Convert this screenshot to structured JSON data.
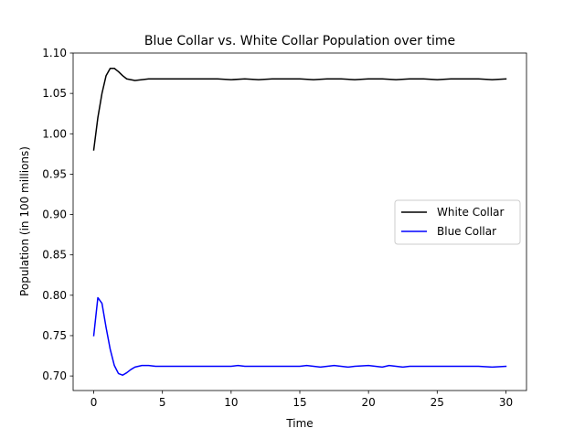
{
  "chart_data": {
    "type": "line",
    "title": "Blue Collar vs. White Collar Population over time",
    "xlabel": "Time",
    "ylabel": "Population (in 100 millions)",
    "xlim": [
      -1.5,
      31.5
    ],
    "ylim": [
      0.682,
      1.1
    ],
    "xticks": [
      0,
      5,
      10,
      15,
      20,
      25,
      30
    ],
    "xtick_labels": [
      "0",
      "5",
      "10",
      "15",
      "20",
      "25",
      "30"
    ],
    "yticks": [
      0.7,
      0.75,
      0.8,
      0.85,
      0.9,
      0.95,
      1.0,
      1.05,
      1.1
    ],
    "ytick_labels": [
      "0.70",
      "0.75",
      "0.80",
      "0.85",
      "0.90",
      "0.95",
      "1.00",
      "1.05",
      "1.10"
    ],
    "grid": false,
    "legend_position": "center-right",
    "series": [
      {
        "name": "White Collar",
        "color": "#000000",
        "x": [
          0,
          0.3,
          0.6,
          0.9,
          1.2,
          1.5,
          1.8,
          2.1,
          2.4,
          2.7,
          3.0,
          3.5,
          4.0,
          4.5,
          5,
          6,
          7,
          8,
          9,
          10,
          11,
          12,
          13,
          14,
          15,
          16,
          17,
          18,
          19,
          20,
          21,
          22,
          23,
          24,
          25,
          26,
          27,
          28,
          29,
          30
        ],
        "y": [
          0.98,
          1.02,
          1.05,
          1.072,
          1.081,
          1.081,
          1.077,
          1.072,
          1.068,
          1.067,
          1.066,
          1.067,
          1.068,
          1.068,
          1.068,
          1.068,
          1.068,
          1.068,
          1.068,
          1.067,
          1.068,
          1.067,
          1.068,
          1.068,
          1.068,
          1.067,
          1.068,
          1.068,
          1.067,
          1.068,
          1.068,
          1.067,
          1.068,
          1.068,
          1.067,
          1.068,
          1.068,
          1.068,
          1.067,
          1.068
        ]
      },
      {
        "name": "Blue Collar",
        "color": "#0000ff",
        "x": [
          0,
          0.3,
          0.6,
          0.9,
          1.2,
          1.5,
          1.8,
          2.1,
          2.4,
          2.7,
          3.0,
          3.5,
          4.0,
          4.5,
          5,
          6,
          7,
          8,
          9,
          10,
          10.5,
          11,
          12,
          13,
          14,
          15,
          15.5,
          16,
          16.5,
          17,
          17.5,
          18,
          18.5,
          19,
          20,
          21,
          21.5,
          22,
          22.5,
          23,
          24,
          25,
          26,
          27,
          28,
          29,
          30
        ],
        "y": [
          0.75,
          0.797,
          0.79,
          0.76,
          0.733,
          0.713,
          0.703,
          0.701,
          0.704,
          0.708,
          0.711,
          0.713,
          0.713,
          0.712,
          0.712,
          0.712,
          0.712,
          0.712,
          0.712,
          0.712,
          0.713,
          0.712,
          0.712,
          0.712,
          0.712,
          0.712,
          0.713,
          0.712,
          0.711,
          0.712,
          0.713,
          0.712,
          0.711,
          0.712,
          0.713,
          0.711,
          0.713,
          0.712,
          0.711,
          0.712,
          0.712,
          0.712,
          0.712,
          0.712,
          0.712,
          0.711,
          0.712
        ]
      }
    ]
  }
}
